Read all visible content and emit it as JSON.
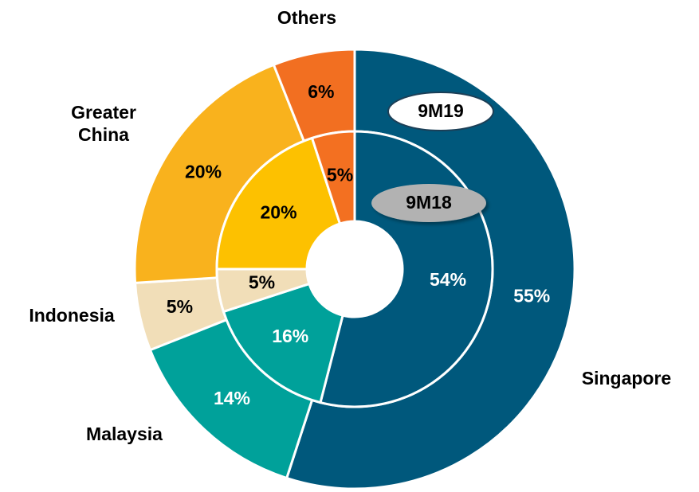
{
  "chart_data": {
    "type": "donut",
    "categories": [
      "Singapore",
      "Malaysia",
      "Indonesia",
      "Greater China",
      "Others"
    ],
    "series": [
      {
        "name": "9M19",
        "values": [
          55,
          14,
          5,
          20,
          6
        ],
        "value_labels": [
          "55%",
          "14%",
          "5%",
          "20%",
          "6%"
        ],
        "colors": [
          "#00587c",
          "#00a19a",
          "#f1deb8",
          "#f9b21d",
          "#f26f21"
        ]
      },
      {
        "name": "9M18",
        "values": [
          54,
          16,
          5,
          20,
          5
        ],
        "value_labels": [
          "54%",
          "16%",
          "5%",
          "20%",
          "5%"
        ],
        "colors": [
          "#00587c",
          "#00a19a",
          "#f1deb8",
          "#fdc100",
          "#f37021"
        ]
      }
    ]
  }
}
